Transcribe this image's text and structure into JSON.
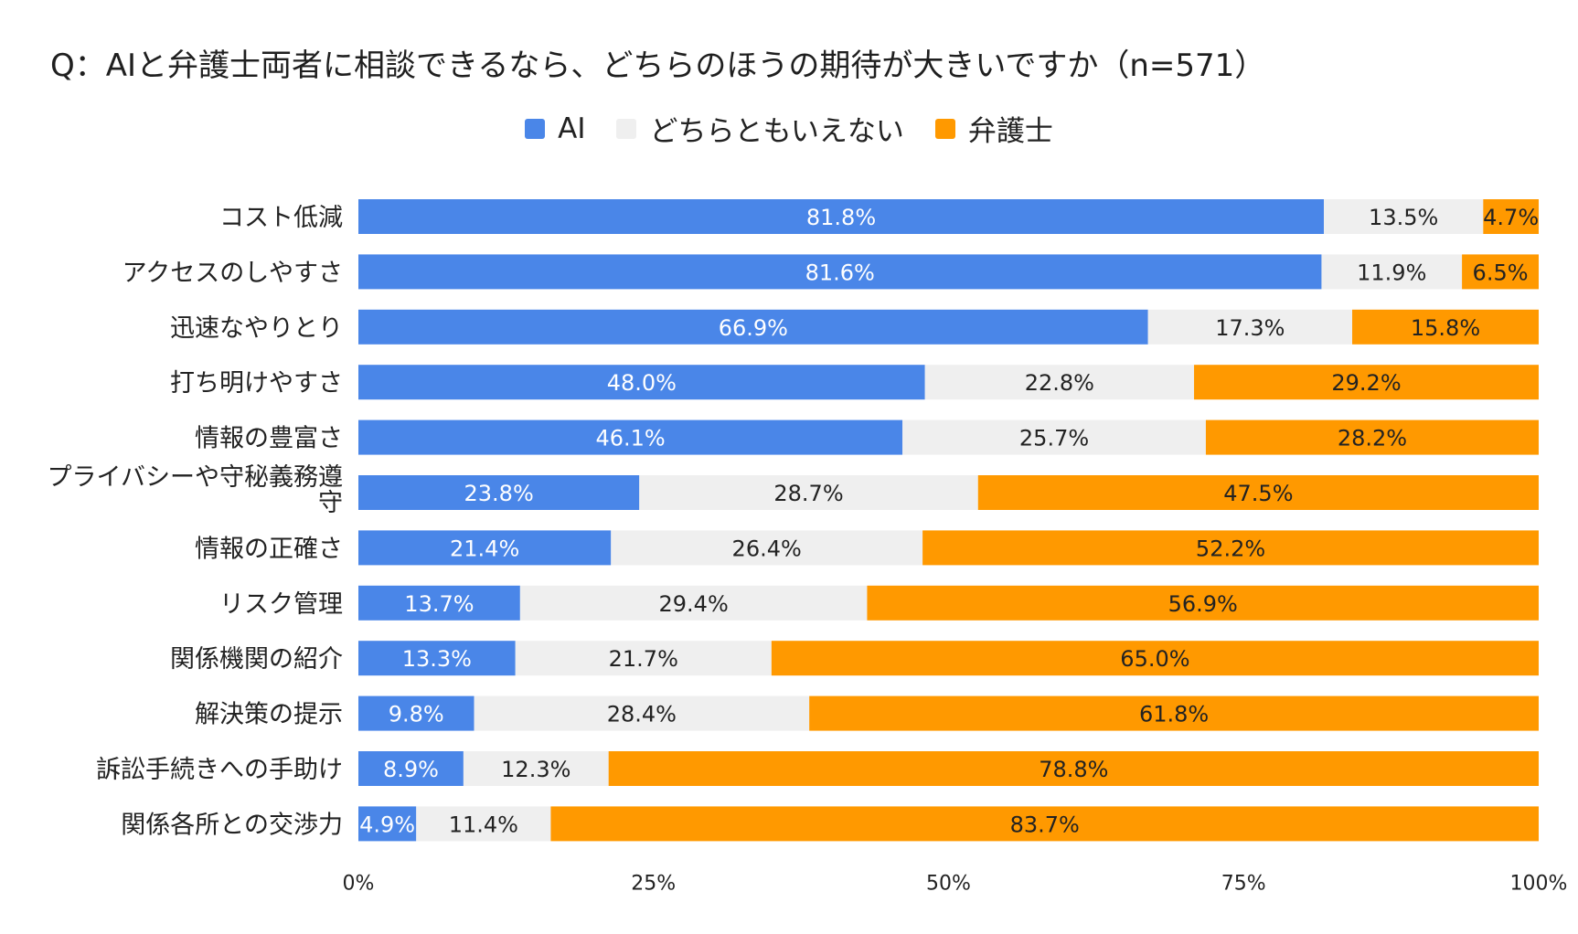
{
  "chart_data": {
    "type": "bar",
    "orientation": "horizontal",
    "stacked": true,
    "title": "Q：AIと弁護士両者に相談できるなら、どちらのほうの期待が大きいですか（n=571）",
    "legend_position": "top",
    "categories": [
      "コスト低減",
      "アクセスのしやすさ",
      "迅速なやりとり",
      "打ち明けやすさ",
      "情報の豊富さ",
      "プライバシーや守秘義務遵守",
      "情報の正確さ",
      "リスク管理",
      "関係機関の紹介",
      "解決策の提示",
      "訴訟手続きへの手助け",
      "関係各所との交渉力"
    ],
    "series": [
      {
        "name": "AI",
        "color": "#4a86e8",
        "label_color": "#ffffff",
        "values": [
          81.8,
          81.6,
          66.9,
          48.0,
          46.1,
          23.8,
          21.4,
          13.7,
          13.3,
          9.8,
          8.9,
          4.9
        ]
      },
      {
        "name": "どちらともいえない",
        "color": "#efefef",
        "label_color": "#222222",
        "values": [
          13.5,
          11.9,
          17.3,
          22.8,
          25.7,
          28.7,
          26.4,
          29.4,
          21.7,
          28.4,
          12.3,
          11.4
        ]
      },
      {
        "name": "弁護士",
        "color": "#ff9900",
        "label_color": "#222222",
        "values": [
          4.7,
          6.5,
          15.8,
          29.2,
          28.2,
          47.5,
          52.2,
          56.9,
          65.0,
          61.8,
          78.8,
          83.7
        ]
      }
    ],
    "x_ticks": [
      "0%",
      "25%",
      "50%",
      "75%",
      "100%"
    ],
    "xlim": [
      0,
      100
    ],
    "grid": false
  }
}
